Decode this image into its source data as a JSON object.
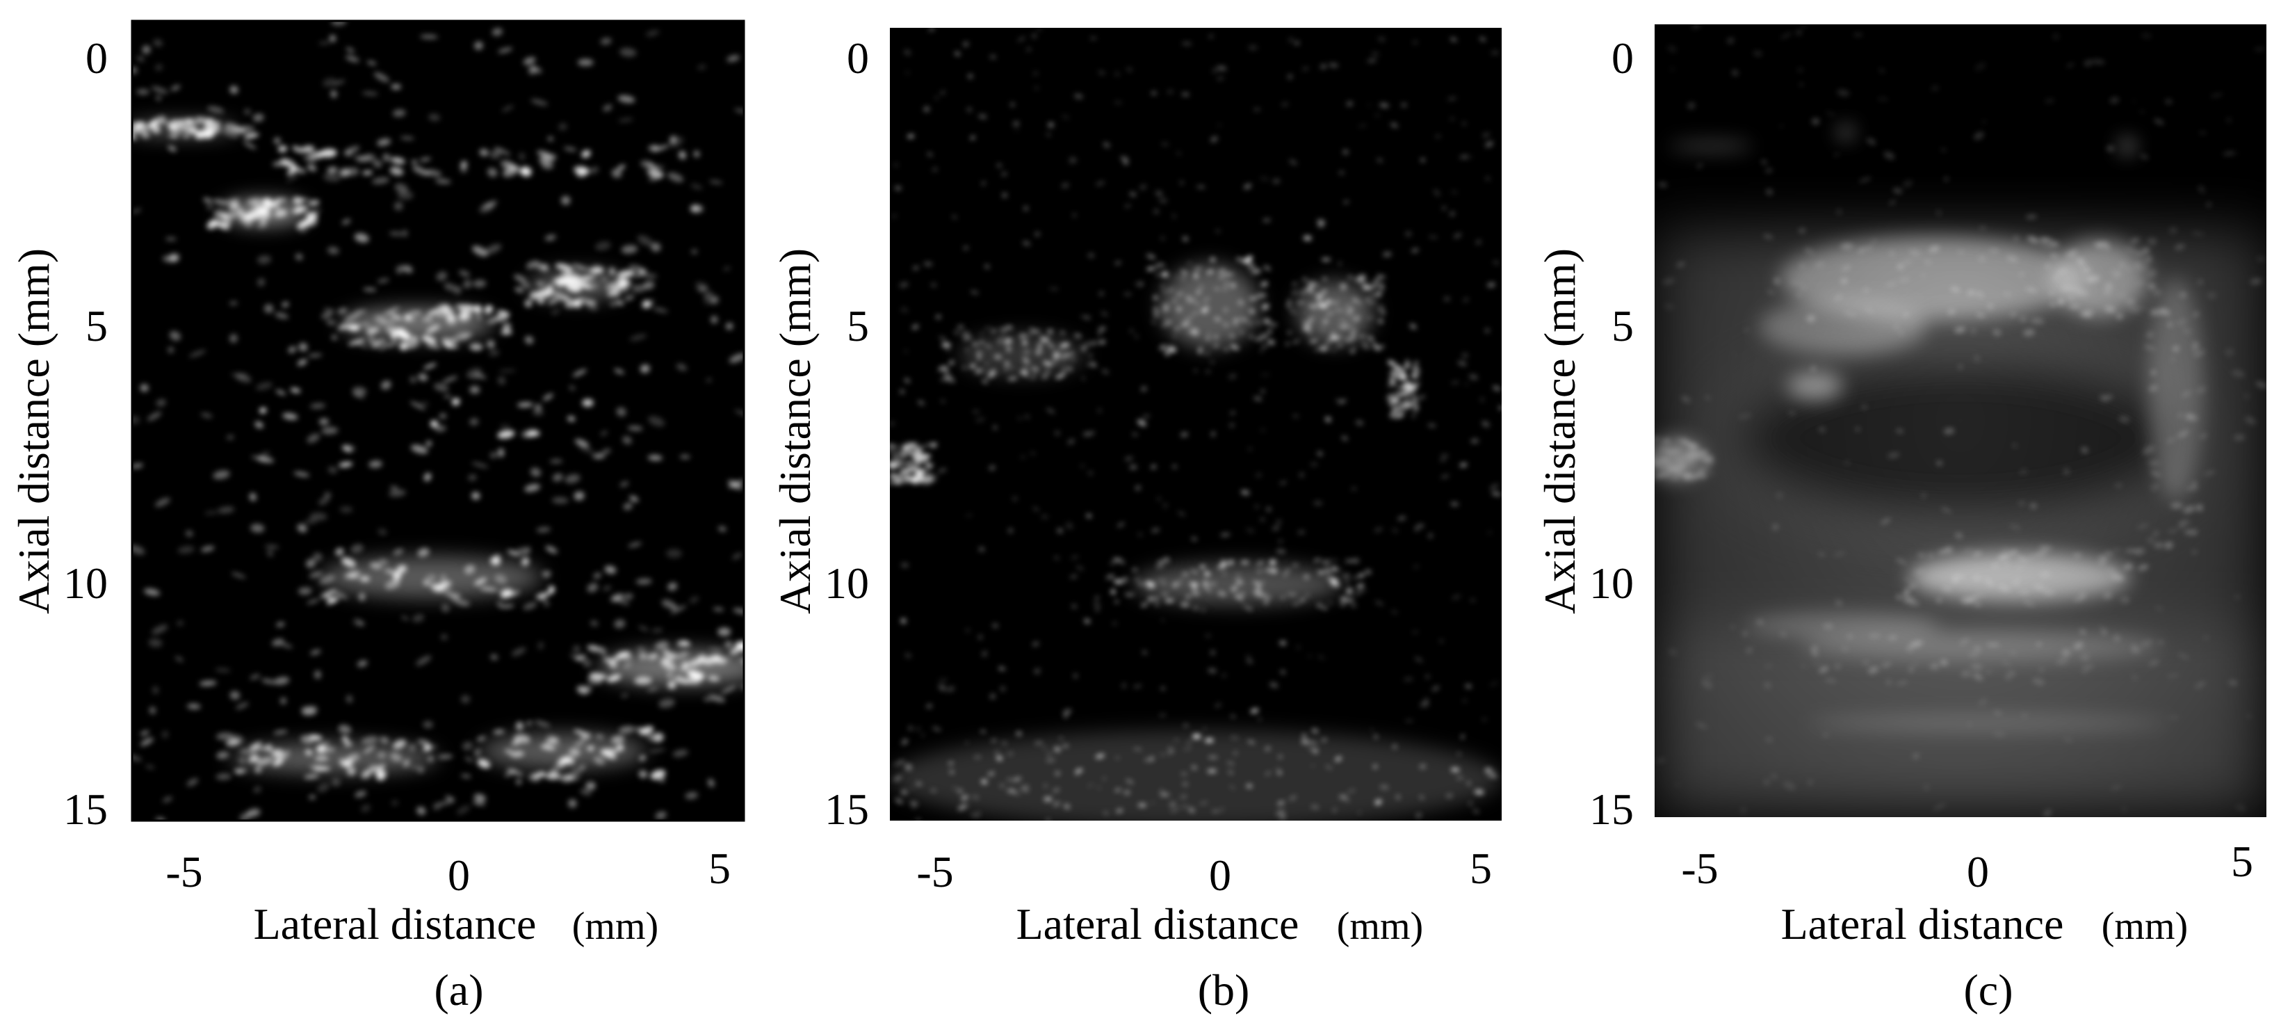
{
  "panels": [
    {
      "id": "a",
      "caption": "(a)",
      "y_ticks": [
        "0",
        "5",
        "10",
        "15"
      ],
      "x_ticks": [
        "-5",
        "0",
        "5"
      ],
      "ylabel": "Axial distance (mm)",
      "xlabel_main": "Lateral distance",
      "xlabel_unit": "(mm)",
      "image_style": "sparse speckle B-mode"
    },
    {
      "id": "b",
      "caption": "(b)",
      "y_ticks": [
        "0",
        "5",
        "10",
        "15"
      ],
      "x_ticks": [
        "-5",
        "0",
        "5"
      ],
      "ylabel": "Axial distance (mm)",
      "xlabel_main": "Lateral distance",
      "xlabel_unit": "(mm)",
      "image_style": "fine speckle B-mode"
    },
    {
      "id": "c",
      "caption": "(c)",
      "y_ticks": [
        "0",
        "5",
        "10",
        "15"
      ],
      "x_ticks": [
        "-5",
        "0",
        "5"
      ],
      "ylabel": "Axial distance (mm)",
      "xlabel_main": "Lateral distance",
      "xlabel_unit": "(mm)",
      "image_style": "smooth compounded image"
    }
  ],
  "colors": {
    "background": "#ffffff",
    "image_bg": "#000000",
    "echo": "#ffffff"
  }
}
